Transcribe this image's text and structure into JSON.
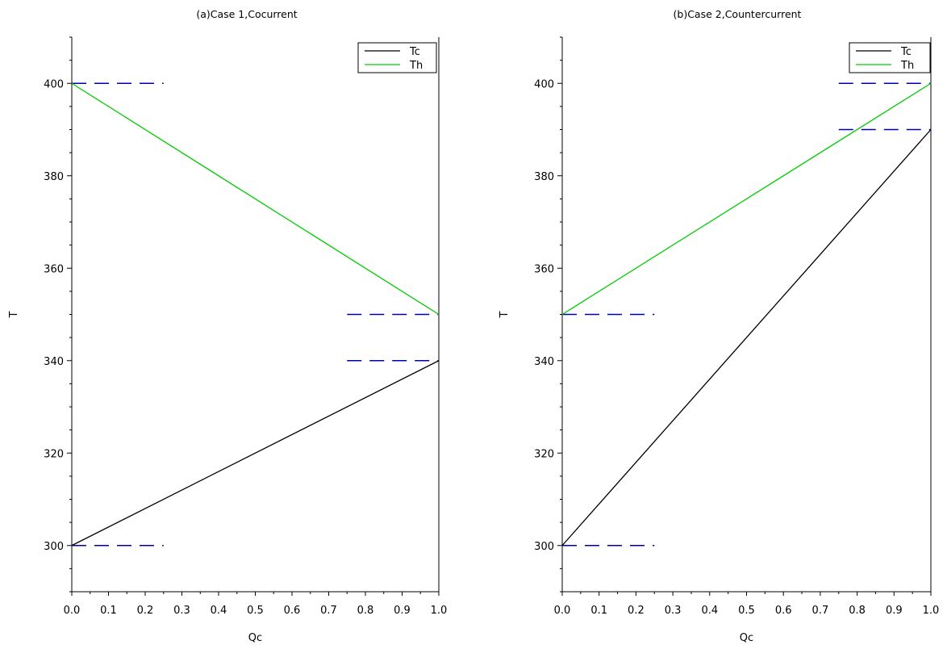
{
  "chart_data": [
    {
      "type": "line",
      "title": "(a)Case 1,Cocurrent",
      "xlabel": "Qc",
      "ylabel": "T",
      "xlim": [
        0.0,
        1.0
      ],
      "ylim": [
        290,
        410
      ],
      "x_ticks": [
        "0.0",
        "0.1",
        "0.2",
        "0.3",
        "0.4",
        "0.5",
        "0.6",
        "0.7",
        "0.8",
        "0.9",
        "1.0"
      ],
      "y_ticks": [
        300,
        320,
        340,
        360,
        380,
        400
      ],
      "legend_position": "top-right",
      "series": [
        {
          "name": "Tc",
          "color": "#000000",
          "x": [
            0.0,
            1.0
          ],
          "y": [
            300,
            340
          ]
        },
        {
          "name": "Th",
          "color": "#00cc00",
          "x": [
            0.0,
            1.0
          ],
          "y": [
            400,
            350
          ]
        }
      ],
      "reference_lines": [
        {
          "color": "#0000aa",
          "style": "dashed",
          "x": [
            0.0,
            0.25
          ],
          "y": 400
        },
        {
          "color": "#0000aa",
          "style": "dashed",
          "x": [
            0.0,
            0.25
          ],
          "y": 300
        },
        {
          "color": "#0000aa",
          "style": "dashed",
          "x": [
            0.75,
            1.0
          ],
          "y": 350
        },
        {
          "color": "#0000aa",
          "style": "dashed",
          "x": [
            0.75,
            1.0
          ],
          "y": 340
        }
      ]
    },
    {
      "type": "line",
      "title": "(b)Case 2,Countercurrent",
      "xlabel": "Qc",
      "ylabel": "T",
      "xlim": [
        0.0,
        1.0
      ],
      "ylim": [
        290,
        410
      ],
      "x_ticks": [
        "0.0",
        "0.1",
        "0.2",
        "0.3",
        "0.4",
        "0.5",
        "0.6",
        "0.7",
        "0.8",
        "0.9",
        "1.0"
      ],
      "y_ticks": [
        300,
        320,
        340,
        360,
        380,
        400
      ],
      "legend_position": "top-right",
      "series": [
        {
          "name": "Tc",
          "color": "#000000",
          "x": [
            0.0,
            1.0
          ],
          "y": [
            300,
            390
          ]
        },
        {
          "name": "Th",
          "color": "#00cc00",
          "x": [
            0.0,
            1.0
          ],
          "y": [
            350,
            400
          ]
        }
      ],
      "reference_lines": [
        {
          "color": "#0000aa",
          "style": "dashed",
          "x": [
            0.0,
            0.25
          ],
          "y": 350
        },
        {
          "color": "#0000aa",
          "style": "dashed",
          "x": [
            0.0,
            0.25
          ],
          "y": 300
        },
        {
          "color": "#0000aa",
          "style": "dashed",
          "x": [
            0.75,
            1.0
          ],
          "y": 400
        },
        {
          "color": "#0000aa",
          "style": "dashed",
          "x": [
            0.75,
            1.0
          ],
          "y": 390
        }
      ]
    }
  ]
}
